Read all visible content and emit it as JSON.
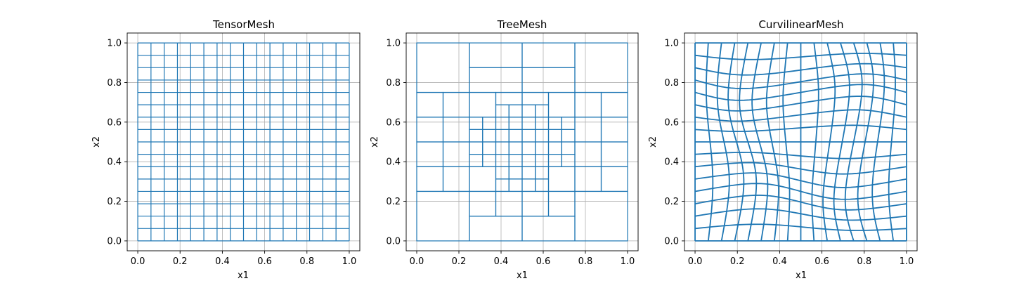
{
  "chart_data": [
    {
      "type": "mesh",
      "mesh_kind": "tensor",
      "title": "TensorMesh",
      "xlabel": "x1",
      "ylabel": "x2",
      "xlim": [
        -0.05,
        1.05
      ],
      "ylim": [
        -0.05,
        1.05
      ],
      "x_ticks": [
        "0.0",
        "0.2",
        "0.4",
        "0.6",
        "0.8",
        "1.0"
      ],
      "y_ticks": [
        "0.0",
        "0.2",
        "0.4",
        "0.6",
        "0.8",
        "1.0"
      ],
      "grid": true,
      "x_nodes": [
        0,
        0.0625,
        0.125,
        0.1875,
        0.25,
        0.3125,
        0.375,
        0.4375,
        0.5,
        0.5625,
        0.625,
        0.6875,
        0.75,
        0.8125,
        0.875,
        0.9375,
        1.0
      ],
      "y_nodes": [
        0,
        0.0625,
        0.125,
        0.1875,
        0.25,
        0.3125,
        0.375,
        0.4375,
        0.5,
        0.5625,
        0.625,
        0.6875,
        0.75,
        0.8125,
        0.875,
        0.9375,
        1.0
      ]
    },
    {
      "type": "mesh",
      "mesh_kind": "tree",
      "title": "TreeMesh",
      "xlabel": "x1",
      "ylabel": "x2",
      "xlim": [
        -0.05,
        1.05
      ],
      "ylim": [
        -0.05,
        1.05
      ],
      "x_ticks": [
        "0.0",
        "0.2",
        "0.4",
        "0.6",
        "0.8",
        "1.0"
      ],
      "y_ticks": [
        "0.0",
        "0.2",
        "0.4",
        "0.6",
        "0.8",
        "1.0"
      ],
      "grid": true,
      "cells": [
        [
          0,
          0,
          0.25,
          0.25
        ],
        [
          0,
          0.25,
          0.125,
          0.125
        ],
        [
          0.125,
          0.25,
          0.125,
          0.125
        ],
        [
          0,
          0.375,
          0.125,
          0.125
        ],
        [
          0.125,
          0.375,
          0.125,
          0.125
        ],
        [
          0,
          0.5,
          0.125,
          0.125
        ],
        [
          0.125,
          0.5,
          0.125,
          0.125
        ],
        [
          0,
          0.625,
          0.125,
          0.125
        ],
        [
          0.125,
          0.625,
          0.125,
          0.125
        ],
        [
          0,
          0.75,
          0.25,
          0.25
        ],
        [
          0.25,
          0,
          0.25,
          0.125
        ],
        [
          0.5,
          0,
          0.25,
          0.125
        ],
        [
          0.25,
          0.125,
          0.125,
          0.125
        ],
        [
          0.375,
          0.125,
          0.125,
          0.125
        ],
        [
          0.5,
          0.125,
          0.125,
          0.125
        ],
        [
          0.625,
          0.125,
          0.125,
          0.125
        ],
        [
          0.25,
          0.25,
          0.125,
          0.125
        ],
        [
          0.375,
          0.25,
          0.0625,
          0.0625
        ],
        [
          0.4375,
          0.25,
          0.0625,
          0.0625
        ],
        [
          0.5,
          0.25,
          0.0625,
          0.0625
        ],
        [
          0.5625,
          0.25,
          0.0625,
          0.0625
        ],
        [
          0.625,
          0.25,
          0.125,
          0.125
        ],
        [
          0.25,
          0.375,
          0.0625,
          0.0625
        ],
        [
          0.3125,
          0.375,
          0.0625,
          0.0625
        ],
        [
          0.375,
          0.3125,
          0.0625,
          0.0625
        ],
        [
          0.4375,
          0.3125,
          0.0625,
          0.0625
        ],
        [
          0.5,
          0.3125,
          0.0625,
          0.0625
        ],
        [
          0.5625,
          0.3125,
          0.0625,
          0.0625
        ],
        [
          0.375,
          0.375,
          0.0625,
          0.0625
        ],
        [
          0.4375,
          0.375,
          0.0625,
          0.0625
        ],
        [
          0.5,
          0.375,
          0.0625,
          0.0625
        ],
        [
          0.5625,
          0.375,
          0.0625,
          0.0625
        ],
        [
          0.625,
          0.375,
          0.0625,
          0.0625
        ],
        [
          0.6875,
          0.375,
          0.0625,
          0.0625
        ],
        [
          0.25,
          0.4375,
          0.0625,
          0.0625
        ],
        [
          0.3125,
          0.4375,
          0.0625,
          0.0625
        ],
        [
          0.375,
          0.4375,
          0.0625,
          0.0625
        ],
        [
          0.4375,
          0.4375,
          0.0625,
          0.0625
        ],
        [
          0.5,
          0.4375,
          0.0625,
          0.0625
        ],
        [
          0.5625,
          0.4375,
          0.0625,
          0.0625
        ],
        [
          0.625,
          0.4375,
          0.0625,
          0.0625
        ],
        [
          0.6875,
          0.4375,
          0.0625,
          0.0625
        ],
        [
          0.25,
          0.5,
          0.0625,
          0.0625
        ],
        [
          0.3125,
          0.5,
          0.0625,
          0.0625
        ],
        [
          0.375,
          0.5,
          0.0625,
          0.0625
        ],
        [
          0.4375,
          0.5,
          0.0625,
          0.0625
        ],
        [
          0.5,
          0.5,
          0.0625,
          0.0625
        ],
        [
          0.5625,
          0.5,
          0.0625,
          0.0625
        ],
        [
          0.625,
          0.5,
          0.0625,
          0.0625
        ],
        [
          0.6875,
          0.5,
          0.0625,
          0.0625
        ],
        [
          0.25,
          0.5625,
          0.0625,
          0.0625
        ],
        [
          0.3125,
          0.5625,
          0.0625,
          0.0625
        ],
        [
          0.375,
          0.5625,
          0.0625,
          0.0625
        ],
        [
          0.4375,
          0.5625,
          0.0625,
          0.0625
        ],
        [
          0.5,
          0.5625,
          0.0625,
          0.0625
        ],
        [
          0.5625,
          0.5625,
          0.0625,
          0.0625
        ],
        [
          0.625,
          0.5625,
          0.0625,
          0.0625
        ],
        [
          0.6875,
          0.5625,
          0.0625,
          0.0625
        ],
        [
          0.25,
          0.625,
          0.125,
          0.125
        ],
        [
          0.375,
          0.625,
          0.0625,
          0.0625
        ],
        [
          0.4375,
          0.625,
          0.0625,
          0.0625
        ],
        [
          0.5,
          0.625,
          0.0625,
          0.0625
        ],
        [
          0.5625,
          0.625,
          0.0625,
          0.0625
        ],
        [
          0.625,
          0.625,
          0.125,
          0.125
        ],
        [
          0.375,
          0.6875,
          0.125,
          0.0625
        ],
        [
          0.5,
          0.6875,
          0.125,
          0.0625
        ],
        [
          0.25,
          0.75,
          0.25,
          0.125
        ],
        [
          0.5,
          0.75,
          0.25,
          0.125
        ],
        [
          0.25,
          0.875,
          0.25,
          0.125
        ],
        [
          0.5,
          0.875,
          0.25,
          0.125
        ],
        [
          0.75,
          0,
          0.25,
          0.25
        ],
        [
          0.75,
          0.25,
          0.125,
          0.125
        ],
        [
          0.875,
          0.25,
          0.125,
          0.125
        ],
        [
          0.75,
          0.375,
          0.125,
          0.125
        ],
        [
          0.875,
          0.375,
          0.125,
          0.125
        ],
        [
          0.75,
          0.5,
          0.125,
          0.125
        ],
        [
          0.875,
          0.5,
          0.125,
          0.125
        ],
        [
          0.75,
          0.625,
          0.125,
          0.125
        ],
        [
          0.875,
          0.625,
          0.125,
          0.125
        ],
        [
          0.75,
          0.75,
          0.25,
          0.25
        ]
      ]
    },
    {
      "type": "mesh",
      "mesh_kind": "curvilinear",
      "title": "CurvilinearMesh",
      "xlabel": "x1",
      "ylabel": "x2",
      "xlim": [
        -0.05,
        1.05
      ],
      "ylim": [
        -0.05,
        1.05
      ],
      "x_ticks": [
        "0.0",
        "0.2",
        "0.4",
        "0.6",
        "0.8",
        "1.0"
      ],
      "y_ticks": [
        "0.0",
        "0.2",
        "0.4",
        "0.6",
        "0.8",
        "1.0"
      ],
      "grid": true,
      "n_cells": [
        16,
        16
      ],
      "warp_amplitude": 0.04
    }
  ]
}
